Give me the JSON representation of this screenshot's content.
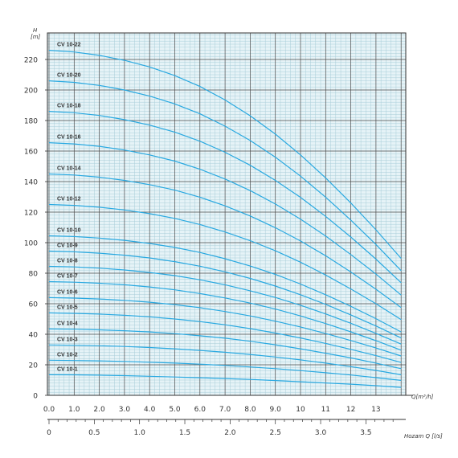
{
  "colors": {
    "curve": "#29a9e1",
    "grid_minor": "#a8cdd8",
    "grid_major": "#4a4a4a",
    "plot_bg": "#e6f3f7",
    "axis": "#333333"
  },
  "chart_data": {
    "type": "line",
    "title": "",
    "ylabel": "H",
    "yunit": "[m]",
    "xlabel": "Q[m³/h]",
    "x2label": "Hozam Q [l/s]",
    "xlim": [
      0,
      14
    ],
    "ylim": [
      0,
      240
    ],
    "x_ticks": [
      "0.0",
      "1.0",
      "2.0",
      "3.0",
      "4.0",
      "5.0",
      "6.0",
      "7.0",
      "8.0",
      "9.0",
      "10",
      "11",
      "12",
      "13"
    ],
    "x2_ticks": [
      "0",
      "0.5",
      "1.0",
      "1.5",
      "2.0",
      "2.5",
      "3.0",
      "3.5"
    ],
    "y_ticks": [
      "0",
      "20",
      "40",
      "60",
      "80",
      "100",
      "120",
      "140",
      "160",
      "180",
      "200",
      "220"
    ],
    "x": [
      0,
      1,
      2,
      3,
      4,
      5,
      6,
      7,
      8,
      9,
      10,
      11,
      12,
      13,
      14
    ],
    "series": [
      {
        "name": "CV 10-1",
        "values": [
          13.5,
          13.4,
          13.2,
          12.9,
          12.5,
          12.0,
          11.5,
          11.0,
          10.4,
          9.7,
          8.9,
          8.1,
          7.3,
          6.3,
          5.2
        ]
      },
      {
        "name": "CV 10-2",
        "values": [
          23.0,
          22.8,
          22.6,
          22.2,
          21.7,
          21.1,
          20.4,
          19.6,
          18.6,
          17.5,
          16.2,
          14.8,
          13.3,
          11.6,
          9.8
        ]
      },
      {
        "name": "CV 10-3",
        "values": [
          33.0,
          32.8,
          32.5,
          32.0,
          31.3,
          30.5,
          29.4,
          28.2,
          26.8,
          25.1,
          23.2,
          21.1,
          18.8,
          16.3,
          13.5
        ]
      },
      {
        "name": "CV 10-4",
        "values": [
          43.5,
          43.3,
          42.9,
          42.3,
          41.5,
          40.4,
          39.0,
          37.4,
          35.4,
          33.1,
          30.5,
          27.6,
          24.5,
          21.1,
          17.5
        ]
      },
      {
        "name": "CV 10-5",
        "values": [
          54.0,
          53.7,
          53.2,
          52.4,
          51.4,
          50.0,
          48.3,
          46.2,
          43.7,
          40.8,
          37.6,
          34.0,
          30.1,
          26.0,
          21.5
        ]
      },
      {
        "name": "CV 10-6",
        "values": [
          64.0,
          63.7,
          63.1,
          62.2,
          61.0,
          59.4,
          57.4,
          54.9,
          52.0,
          48.6,
          44.8,
          40.5,
          35.9,
          31.0,
          25.8
        ]
      },
      {
        "name": "CV 10-7",
        "values": [
          74.5,
          74.1,
          73.4,
          72.4,
          71.0,
          69.1,
          66.7,
          63.8,
          60.4,
          56.5,
          52.0,
          47.0,
          41.6,
          35.8,
          29.6
        ]
      },
      {
        "name": "CV 10-8",
        "values": [
          84.5,
          84.1,
          83.3,
          82.1,
          80.5,
          78.4,
          75.7,
          72.4,
          68.5,
          64.1,
          59.0,
          53.3,
          47.2,
          40.6,
          33.6
        ]
      },
      {
        "name": "CV 10-9",
        "values": [
          94.5,
          94.0,
          93.1,
          91.8,
          90.0,
          87.6,
          84.6,
          80.9,
          76.6,
          71.6,
          65.9,
          59.6,
          52.7,
          45.4,
          37.6
        ]
      },
      {
        "name": "CV 10-10",
        "values": [
          104.5,
          104.0,
          103.0,
          101.5,
          99.5,
          96.9,
          93.6,
          89.5,
          84.7,
          79.2,
          72.9,
          65.9,
          58.3,
          50.2,
          41.5
        ]
      },
      {
        "name": "CV 10-12",
        "values": [
          125.0,
          124.4,
          123.2,
          121.4,
          119.0,
          115.9,
          111.9,
          107.0,
          101.3,
          94.7,
          87.2,
          78.8,
          69.7,
          60.0,
          49.6
        ]
      },
      {
        "name": "CV 10-14",
        "values": [
          145.0,
          144.3,
          142.9,
          140.8,
          138.0,
          134.4,
          129.8,
          124.1,
          117.5,
          109.8,
          101.1,
          91.4,
          80.8,
          69.5,
          57.5
        ]
      },
      {
        "name": "CV 10-16",
        "values": [
          165.5,
          164.7,
          163.1,
          160.7,
          157.5,
          153.4,
          148.1,
          141.7,
          134.1,
          125.3,
          115.4,
          104.3,
          92.2,
          79.4,
          65.7
        ]
      },
      {
        "name": "CV 10-18",
        "values": [
          186.0,
          185.1,
          183.3,
          180.6,
          177.0,
          172.4,
          166.5,
          159.2,
          150.7,
          140.8,
          129.7,
          117.2,
          103.7,
          89.2,
          73.8
        ]
      },
      {
        "name": "CV 10-20",
        "values": [
          206.0,
          205.0,
          203.0,
          200.0,
          196.0,
          190.9,
          184.4,
          176.3,
          166.9,
          156.0,
          143.6,
          129.8,
          114.8,
          98.8,
          81.7
        ]
      },
      {
        "name": "CV 10-22",
        "values": [
          226.0,
          224.9,
          222.7,
          219.4,
          215.1,
          209.4,
          202.3,
          193.5,
          183.1,
          171.1,
          157.5,
          142.4,
          126.0,
          108.4,
          89.7
        ]
      }
    ],
    "label_positions": "left, above each curve",
    "grid": true,
    "legend": "none"
  }
}
